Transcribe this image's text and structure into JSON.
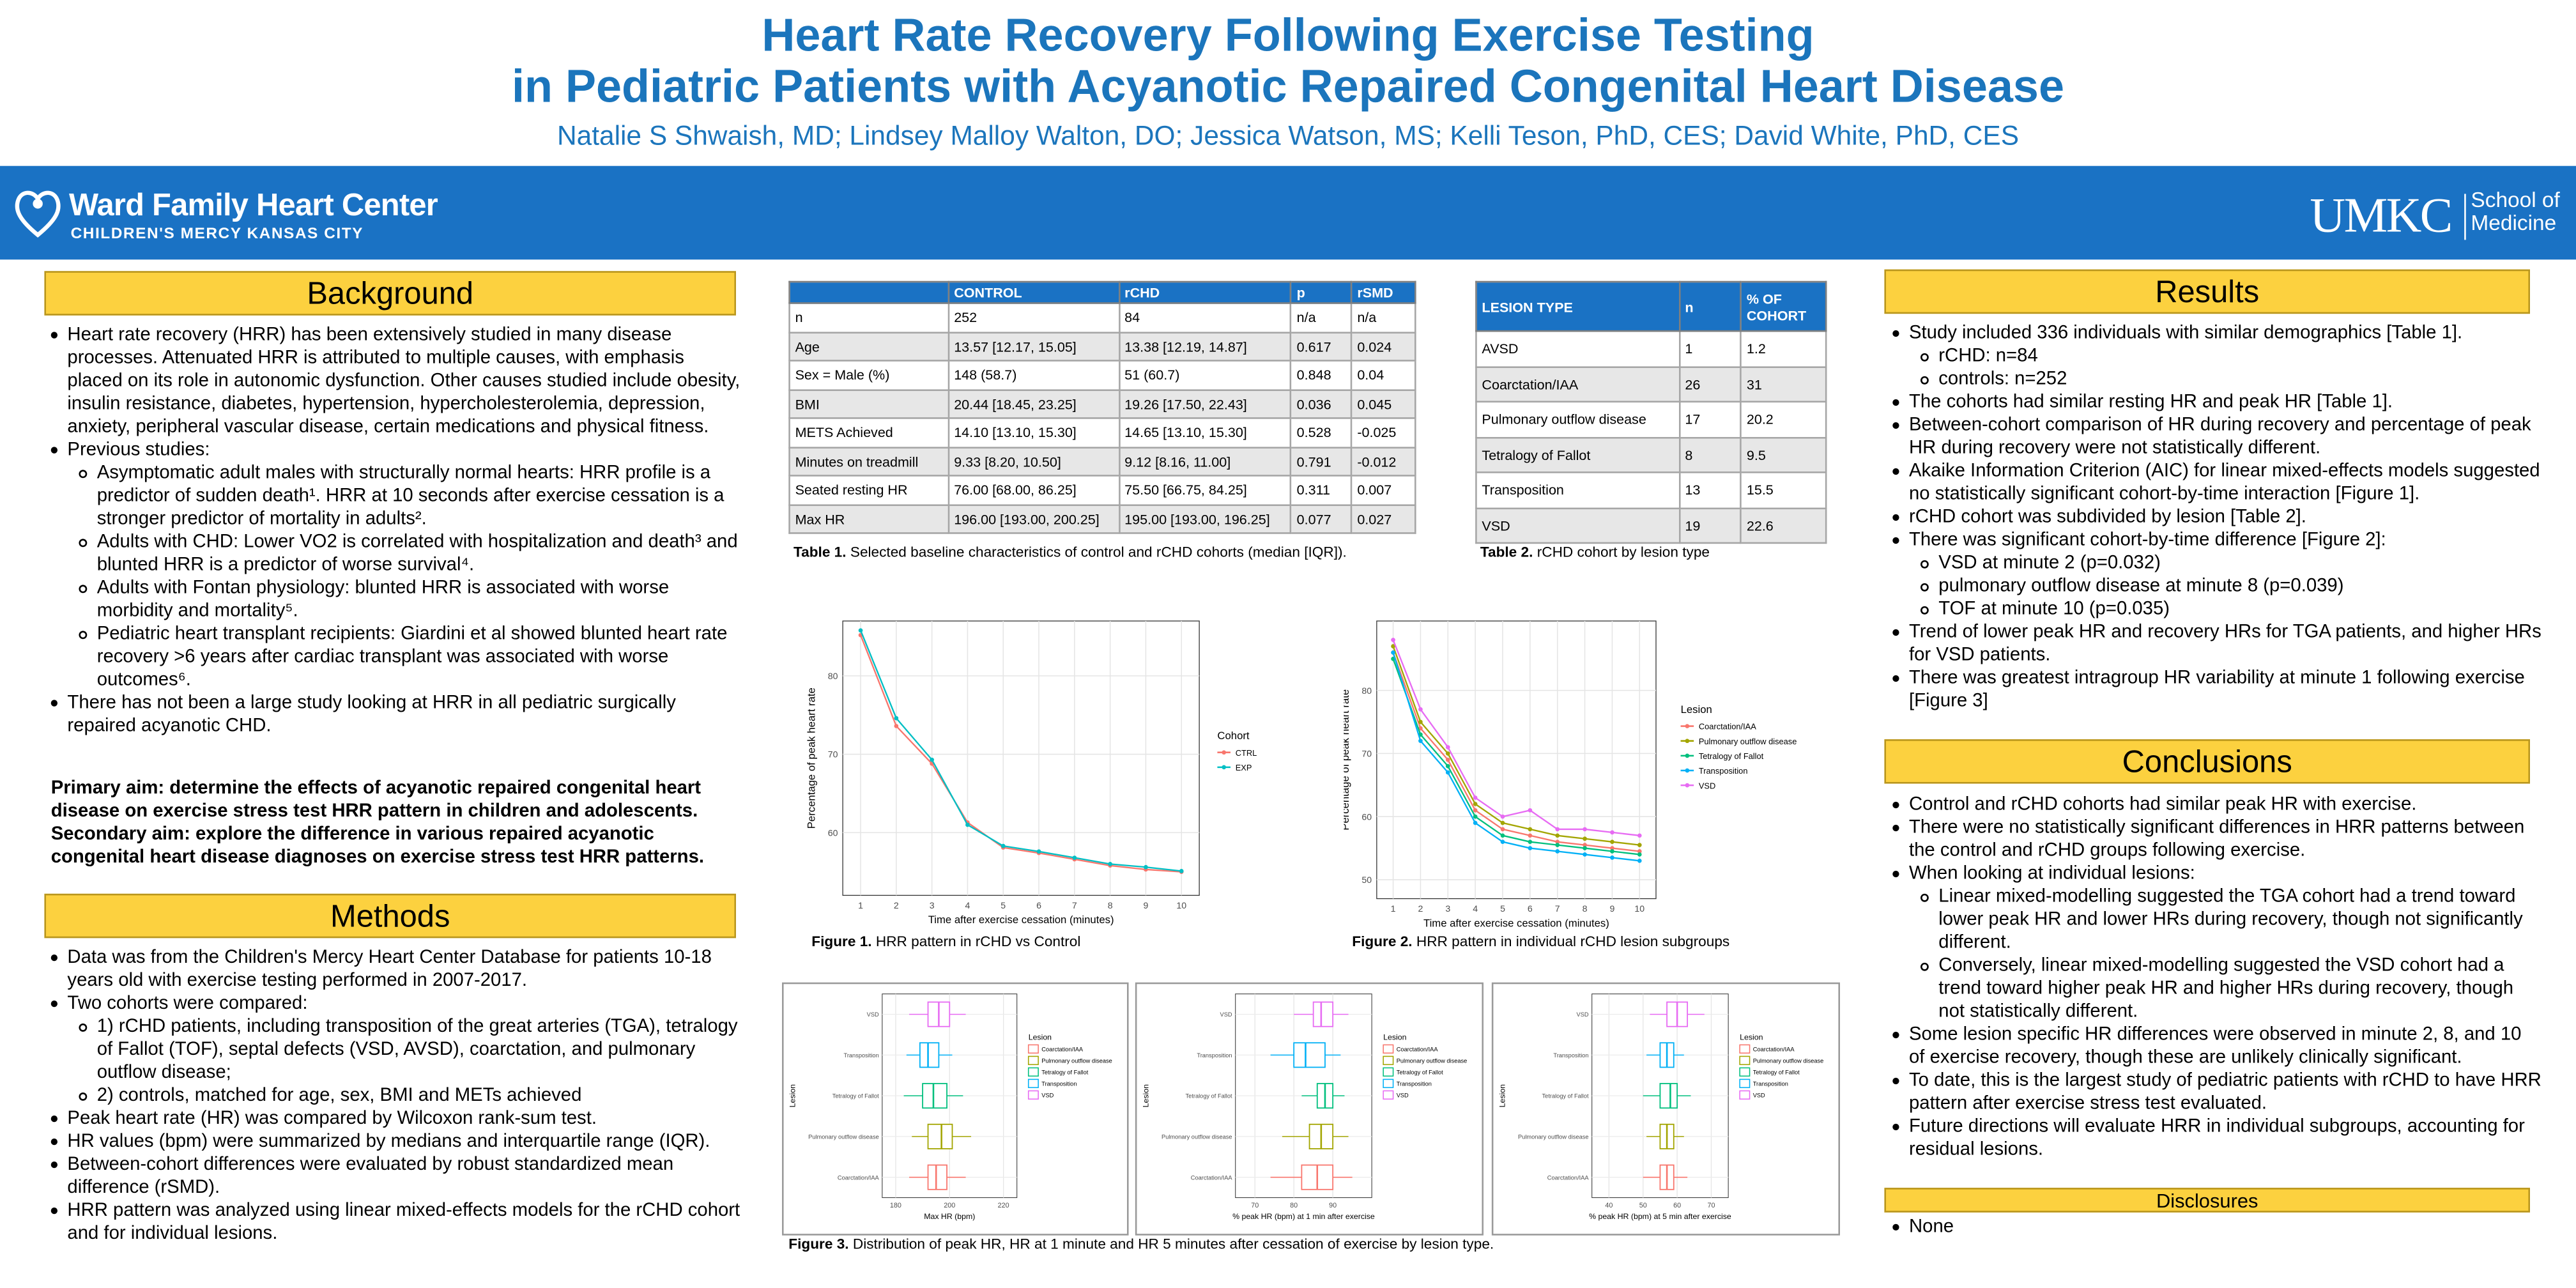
{
  "header": {
    "title_lines": [
      "Heart Rate Recovery Following Exercise Testing",
      "in Pediatric Patients with Acyanotic Repaired Congenital Heart Disease"
    ],
    "authors": "Natalie S Shwaish, MD;  Lindsey Malloy Walton, DO;  Jessica Watson, MS;  Kelli Teson, PhD, CES;  David White, PhD, CES"
  },
  "banner": {
    "left_name": "Ward Family Heart Center",
    "left_sub": "CHILDREN'S MERCY KANSAS CITY",
    "right_name": "UMKC",
    "right_sub_lines": [
      "School of",
      "Medicine"
    ]
  },
  "background": {
    "heading": "Background",
    "items": [
      {
        "text": "Heart rate recovery (HRR) has been extensively studied in many disease processes.  Attenuated HRR is attributed to multiple causes, with emphasis placed on its role in autonomic dysfunction. Other causes studied include obesity, insulin resistance, diabetes, hypertension, hypercholesterolemia, depression, anxiety, peripheral vascular disease, certain medications and physical fitness."
      },
      {
        "text": "Previous studies:",
        "sub": [
          "Asymptomatic adult males with structurally normal hearts: HRR profile is a predictor of sudden death¹. HRR at 10 seconds after exercise cessation is a stronger predictor of mortality in adults².",
          "Adults with CHD: Lower VO2 is correlated with hospitalization and death³ and blunted HRR is a predictor of worse survival⁴.",
          "Adults with Fontan physiology: blunted HRR is associated with worse morbidity and mortality⁵.",
          "Pediatric heart transplant recipients: Giardini et al showed blunted heart rate recovery >6 years after cardiac transplant was associated with worse outcomes⁶."
        ]
      },
      {
        "text": "There has not been a large study looking at HRR in all pediatric surgically repaired acyanotic CHD."
      }
    ],
    "aims": [
      "Primary aim: determine the effects of acyanotic repaired congenital heart disease on exercise stress test HRR pattern in children and adolescents.",
      "Secondary aim: explore the difference in various repaired acyanotic congenital heart disease diagnoses on exercise stress test HRR patterns."
    ]
  },
  "methods": {
    "heading": "Methods",
    "items": [
      {
        "text": "Data was from the Children's Mercy Heart Center Database for patients 10-18 years old with exercise testing performed in 2007-2017."
      },
      {
        "text": "Two cohorts were compared:",
        "sub": [
          "1) rCHD patients, including transposition of the great arteries (TGA), tetralogy of Fallot (TOF), septal defects (VSD, AVSD), coarctation, and pulmonary outflow disease;",
          "2) controls, matched for age, sex, BMI and METs achieved"
        ]
      },
      {
        "text": "Peak heart rate (HR) was compared by Wilcoxon rank-sum test."
      },
      {
        "text": "HR values (bpm) were summarized by medians and interquartile range (IQR)."
      },
      {
        "text": "Between-cohort differences were evaluated by robust standardized mean difference (rSMD)."
      },
      {
        "text": "HRR pattern was analyzed using linear mixed-effects models for the rCHD cohort and for individual lesions."
      }
    ]
  },
  "results": {
    "heading": "Results",
    "items": [
      {
        "text": "Study included 336 individuals with similar demographics [Table 1].",
        "sub": [
          "rCHD: n=84",
          "controls: n=252"
        ]
      },
      {
        "text": "The cohorts had similar resting HR and peak HR [Table 1]."
      },
      {
        "text": "Between-cohort comparison of HR during recovery and percentage of peak HR during recovery were not statistically different."
      },
      {
        "text": "Akaike Information Criterion (AIC) for linear mixed-effects models suggested no statistically significant cohort-by-time interaction [Figure 1]."
      },
      {
        "text": "rCHD cohort was subdivided by lesion [Table 2]."
      },
      {
        "text": "There was significant cohort-by-time difference [Figure 2]:",
        "sub": [
          "VSD at minute 2 (p=0.032)",
          "pulmonary outflow disease at minute 8 (p=0.039)",
          "TOF at minute 10 (p=0.035)"
        ]
      },
      {
        "text": "Trend of lower peak HR and recovery HRs for TGA patients, and higher HRs for VSD patients."
      },
      {
        "text": "There was greatest intragroup HR variability at minute 1 following exercise [Figure 3]"
      }
    ]
  },
  "conclusions": {
    "heading": "Conclusions",
    "items": [
      {
        "text": "Control and rCHD cohorts had similar peak HR with exercise."
      },
      {
        "text": "There were no statistically significant differences in HRR patterns between the control and rCHD groups following exercise."
      },
      {
        "text": "When looking at individual lesions:",
        "sub": [
          "Linear mixed-modelling suggested the TGA cohort had a trend toward lower peak HR and lower HRs during recovery, though not significantly different.",
          "Conversely, linear mixed-modelling suggested the VSD cohort had a trend toward higher peak HR and higher HRs during recovery, though not statistically different."
        ]
      },
      {
        "text": "Some lesion specific HR differences were observed in minute 2, 8, and 10 of exercise recovery, though these are unlikely clinically significant."
      },
      {
        "text": "To date, this is the largest study of pediatric patients with rCHD to have HRR pattern after exercise stress test evaluated."
      },
      {
        "text": "Future directions will evaluate HRR in individual subgroups, accounting for residual lesions."
      }
    ]
  },
  "disclosures": {
    "heading": "Disclosures",
    "items": [
      {
        "text": "None"
      }
    ]
  },
  "table1": {
    "columns": [
      "CONTROL",
      "rCHD",
      "p",
      "rSMD"
    ],
    "rows": [
      [
        "n",
        "252",
        "84",
        " n/a",
        " n/a"
      ],
      [
        "Age",
        "13.57 [12.17, 15.05]",
        "13.38 [12.19, 14.87]",
        "0.617",
        "0.024"
      ],
      [
        "Sex = Male (%)",
        "148 (58.7)",
        "51 (60.7)",
        "0.848",
        "0.04"
      ],
      [
        "BMI",
        "20.44 [18.45, 23.25]",
        "19.26 [17.50, 22.43]",
        "0.036",
        "0.045"
      ],
      [
        "METS Achieved",
        "14.10 [13.10, 15.30]",
        "14.65 [13.10, 15.30]",
        "0.528",
        "-0.025"
      ],
      [
        "Minutes on treadmill",
        "9.33 [8.20, 10.50]",
        "9.12 [8.16, 11.00]",
        "0.791",
        "-0.012"
      ],
      [
        "Seated resting HR",
        "76.00 [68.00, 86.25]",
        "75.50 [66.75, 84.25]",
        "0.311",
        "0.007"
      ],
      [
        "Max HR",
        "196.00 [193.00, 200.25]",
        "195.00 [193.00, 196.25]",
        "0.077",
        "0.027"
      ]
    ],
    "caption_label": "Table 1.",
    "caption_text": " Selected baseline characteristics of control and rCHD cohorts (median [IQR])."
  },
  "table2": {
    "columns": [
      "LESION TYPE",
      "n",
      "% OF COHORT"
    ],
    "rows": [
      [
        "AVSD",
        "1",
        "1.2"
      ],
      [
        "Coarctation/IAA",
        "26",
        "31"
      ],
      [
        "Pulmonary outflow disease",
        "17",
        "20.2"
      ],
      [
        "Tetralogy of Fallot",
        "8",
        "9.5"
      ],
      [
        "Transposition",
        "13",
        "15.5"
      ],
      [
        "VSD",
        "19",
        "22.6"
      ]
    ],
    "caption_label": "Table 2.",
    "caption_text": " rCHD cohort by lesion type"
  },
  "captions": [
    {
      "label": "Figure 1.",
      "text": " HRR pattern in rCHD vs Control"
    },
    {
      "label": "Figure 2.",
      "text": " HRR pattern in individual rCHD lesion subgroups"
    },
    {
      "label": "Figure 3.",
      "text": " Distribution of peak HR, HR at 1 minute and HR 5 minutes after cessation of exercise by lesion type."
    }
  ],
  "chart_data": [
    {
      "type": "line",
      "x_label": "Time after exercise cessation (minutes)",
      "y_label": "Percentage of peak heart rate",
      "legend_title": "Cohort",
      "x": [
        1,
        2,
        3,
        4,
        5,
        6,
        7,
        8,
        9,
        10
      ],
      "xlim": [
        0.5,
        10.5
      ],
      "xticks": [
        1,
        2,
        3,
        4,
        5,
        6,
        7,
        8,
        9,
        10
      ],
      "ylim": [
        52,
        87
      ],
      "yticks": [
        60,
        70,
        80
      ],
      "grid": true,
      "series": [
        {
          "name": "CTRL",
          "color": "#f8766d",
          "values": [
            85.2,
            73.6,
            68.8,
            61.3,
            58.1,
            57.4,
            56.6,
            55.8,
            55.3,
            55.0
          ]
        },
        {
          "name": "EXP",
          "color": "#00bfc4",
          "values": [
            85.8,
            74.6,
            69.3,
            61.0,
            58.3,
            57.6,
            56.8,
            56.0,
            55.6,
            55.1
          ]
        }
      ]
    },
    {
      "type": "line",
      "x_label": "Time after exercise cessation (minutes)",
      "y_label": "Percentage of peak heart rate",
      "legend_title": "Lesion",
      "x": [
        1,
        2,
        3,
        4,
        5,
        6,
        7,
        8,
        9,
        10
      ],
      "xlim": [
        0.4,
        10.6
      ],
      "xticks": [
        1,
        2,
        3,
        4,
        5,
        6,
        7,
        8,
        9,
        10
      ],
      "ylim": [
        47,
        91
      ],
      "yticks": [
        50,
        60,
        70,
        80
      ],
      "grid": true,
      "series": [
        {
          "name": "Coarctation/IAA",
          "color": "#f8766d",
          "values": [
            86,
            74,
            69,
            61,
            58,
            57,
            56,
            55.5,
            55,
            54.5
          ]
        },
        {
          "name": "Pulmonary outflow disease",
          "color": "#a3a500",
          "values": [
            87,
            75,
            70,
            62,
            59,
            58,
            57,
            56.5,
            56,
            55.5
          ]
        },
        {
          "name": "Tetralogy of Fallot",
          "color": "#00bf7d",
          "values": [
            85,
            73,
            68,
            60,
            57,
            56,
            55.5,
            55,
            54.5,
            54
          ]
        },
        {
          "name": "Transposition",
          "color": "#00b0f6",
          "values": [
            86,
            72,
            67,
            59,
            56,
            55,
            54.5,
            54,
            53.5,
            53
          ]
        },
        {
          "name": "VSD",
          "color": "#e76bf3",
          "values": [
            88,
            77,
            71,
            63,
            60,
            61,
            58,
            58,
            57.5,
            57
          ]
        }
      ]
    },
    {
      "type": "box",
      "x_label": "Max HR (bpm)",
      "y_label": "Lesion",
      "legend_title": "Lesion",
      "categories": [
        "Coarctation/IAA",
        "Pulmonary outflow disease",
        "Tetralogy of Fallot",
        "Transposition",
        "VSD"
      ],
      "colors": [
        "#f8766d",
        "#a3a500",
        "#00bf7d",
        "#00b0f6",
        "#e76bf3"
      ],
      "xlim": [
        175,
        225
      ],
      "xticks": [
        180,
        200,
        220
      ],
      "boxes": [
        {
          "low": 185,
          "q1": 192,
          "median": 195,
          "q3": 199,
          "high": 206
        },
        {
          "low": 186,
          "q1": 192,
          "median": 197,
          "q3": 201,
          "high": 208
        },
        {
          "low": 183,
          "q1": 190,
          "median": 194,
          "q3": 199,
          "high": 205
        },
        {
          "low": 184,
          "q1": 189,
          "median": 192,
          "q3": 196,
          "high": 201
        },
        {
          "low": 185,
          "q1": 192,
          "median": 196,
          "q3": 200,
          "high": 206
        }
      ]
    },
    {
      "type": "box",
      "x_label": "% peak HR (bpm) at 1 min after exercise",
      "y_label": "Lesion",
      "legend_title": "Lesion",
      "categories": [
        "Coarctation/IAA",
        "Pulmonary outflow disease",
        "Tetralogy of Fallot",
        "Transposition",
        "VSD"
      ],
      "colors": [
        "#f8766d",
        "#a3a500",
        "#00bf7d",
        "#00b0f6",
        "#e76bf3"
      ],
      "xlim": [
        65,
        100
      ],
      "xticks": [
        70,
        80,
        90
      ],
      "boxes": [
        {
          "low": 74,
          "q1": 82,
          "median": 86,
          "q3": 90,
          "high": 95
        },
        {
          "low": 77,
          "q1": 84,
          "median": 87,
          "q3": 90,
          "high": 94
        },
        {
          "low": 82,
          "q1": 86,
          "median": 88,
          "q3": 90,
          "high": 93
        },
        {
          "low": 74,
          "q1": 80,
          "median": 83,
          "q3": 88,
          "high": 92
        },
        {
          "low": 80,
          "q1": 85,
          "median": 87,
          "q3": 90,
          "high": 94
        }
      ]
    },
    {
      "type": "box",
      "x_label": "% peak HR (bpm) at 5 min after exercise",
      "y_label": "Lesion",
      "legend_title": "Lesion",
      "categories": [
        "Coarctation/IAA",
        "Pulmonary outflow disease",
        "Tetralogy of Fallot",
        "Transposition",
        "VSD"
      ],
      "colors": [
        "#f8766d",
        "#a3a500",
        "#00bf7d",
        "#00b0f6",
        "#e76bf3"
      ],
      "xlim": [
        35,
        75
      ],
      "xticks": [
        40,
        50,
        60,
        70
      ],
      "boxes": [
        {
          "low": 50,
          "q1": 55,
          "median": 57,
          "q3": 59,
          "high": 63
        },
        {
          "low": 51,
          "q1": 55,
          "median": 57,
          "q3": 59,
          "high": 62
        },
        {
          "low": 50,
          "q1": 55,
          "median": 58,
          "q3": 60,
          "high": 64
        },
        {
          "low": 51,
          "q1": 55,
          "median": 57,
          "q3": 59,
          "high": 62
        },
        {
          "low": 52,
          "q1": 57,
          "median": 60,
          "q3": 63,
          "high": 68
        }
      ]
    }
  ]
}
